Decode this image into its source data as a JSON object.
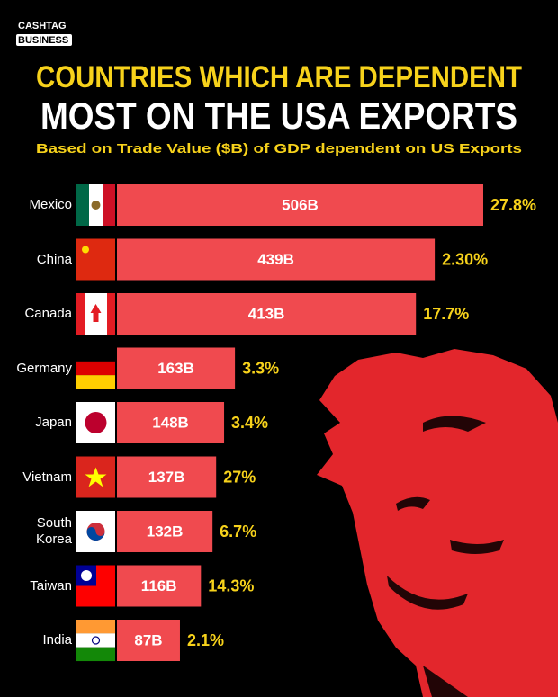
{
  "brand": [
    "CASHTAG",
    "BUSINESS"
  ],
  "chart_data": {
    "type": "bar",
    "title_lines": [
      "COUNTRIES WHICH ARE DEPENDENT",
      "MOST ON THE USA EXPORTS"
    ],
    "subtitle": "Based on Trade Value ($B) of GDP dependent on US Exports",
    "categories": [
      "Mexico",
      "China",
      "Canada",
      "Germany",
      "Japan",
      "Vietnam",
      "South Korea",
      "Taiwan",
      "India"
    ],
    "values": [
      506,
      439,
      413,
      163,
      148,
      137,
      132,
      116,
      87
    ],
    "value_labels": [
      "506B",
      "439B",
      "413B",
      "163B",
      "148B",
      "137B",
      "132B",
      "116B",
      "87B"
    ],
    "color": "#f04a4f",
    "share_values": [
      27.8,
      2.3,
      17.7,
      3.3,
      3.4,
      27,
      6.7,
      14.3,
      2.1
    ],
    "share_labels": [
      "27.8%",
      "2.30%",
      "17.7%",
      "3.3%",
      "3.4%",
      "27%",
      "6.7%",
      "14.3%",
      "2.1%"
    ],
    "share_color": "#f7d21b"
  }
}
